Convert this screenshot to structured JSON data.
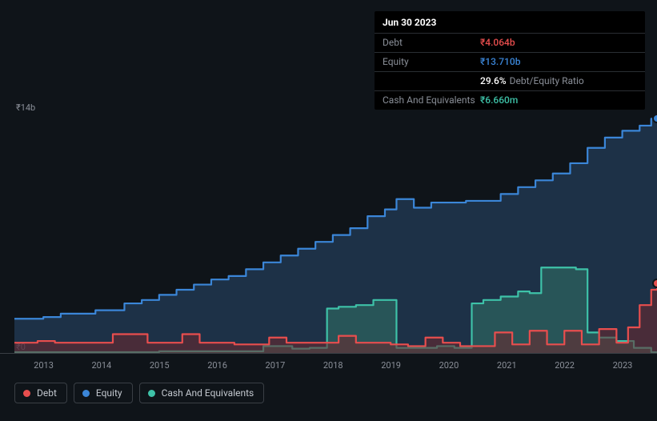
{
  "tooltip": {
    "date": "Jun 30 2023",
    "rows": [
      {
        "label": "Debt",
        "value": "₹4.064b",
        "color": "#e84e4e"
      },
      {
        "label": "Equity",
        "value": "₹13.710b",
        "color": "#3b86d8"
      },
      {
        "label": "",
        "value": "29.6%",
        "suffix": "Debt/Equity Ratio",
        "color": "#ffffff"
      },
      {
        "label": "Cash And Equivalents",
        "value": "₹6.660m",
        "color": "#3ec2a8"
      }
    ]
  },
  "chart": {
    "type": "area",
    "background_color": "#0f1419",
    "grid_color": "#3a3f45",
    "label_color": "#8a8f98",
    "ylim": [
      0,
      14
    ],
    "y_ticks": [
      {
        "label": "₹14b",
        "value": 14
      },
      {
        "label": "₹0",
        "value": 0
      }
    ],
    "x_ticks": [
      "2013",
      "2014",
      "2015",
      "2016",
      "2017",
      "2018",
      "2019",
      "2020",
      "2021",
      "2022",
      "2023"
    ],
    "x_domain": [
      2012.5,
      2023.6
    ],
    "series": {
      "equity": {
        "label": "Equity",
        "color": "#3b86d8",
        "fill": "rgba(42,73,110,0.55)",
        "line_width": 2.2,
        "data": [
          [
            2012.5,
            2.0
          ],
          [
            2012.8,
            2.0
          ],
          [
            2013.0,
            2.1
          ],
          [
            2013.3,
            2.3
          ],
          [
            2013.6,
            2.3
          ],
          [
            2013.9,
            2.5
          ],
          [
            2014.1,
            2.5
          ],
          [
            2014.4,
            2.9
          ],
          [
            2014.7,
            3.1
          ],
          [
            2015.0,
            3.4
          ],
          [
            2015.3,
            3.7
          ],
          [
            2015.6,
            4.0
          ],
          [
            2015.9,
            4.3
          ],
          [
            2016.2,
            4.5
          ],
          [
            2016.5,
            4.9
          ],
          [
            2016.8,
            5.3
          ],
          [
            2017.1,
            5.7
          ],
          [
            2017.4,
            6.1
          ],
          [
            2017.7,
            6.5
          ],
          [
            2018.0,
            6.9
          ],
          [
            2018.3,
            7.3
          ],
          [
            2018.6,
            8.0
          ],
          [
            2018.9,
            8.4
          ],
          [
            2019.1,
            9.0
          ],
          [
            2019.4,
            8.5
          ],
          [
            2019.7,
            8.8
          ],
          [
            2020.0,
            8.8
          ],
          [
            2020.3,
            8.9
          ],
          [
            2020.6,
            8.9
          ],
          [
            2020.9,
            9.3
          ],
          [
            2021.2,
            9.7
          ],
          [
            2021.5,
            10.1
          ],
          [
            2021.8,
            10.5
          ],
          [
            2022.1,
            11.1
          ],
          [
            2022.4,
            12.0
          ],
          [
            2022.7,
            12.6
          ],
          [
            2023.0,
            13.0
          ],
          [
            2023.3,
            13.3
          ],
          [
            2023.5,
            13.7
          ],
          [
            2023.6,
            13.7
          ]
        ]
      },
      "cash": {
        "label": "Cash And Equivalents",
        "color": "#3ec2a8",
        "fill": "rgba(48,110,100,0.6)",
        "line_width": 2.2,
        "data": [
          [
            2012.5,
            0.05
          ],
          [
            2014.0,
            0.05
          ],
          [
            2015.0,
            0.1
          ],
          [
            2016.0,
            0.1
          ],
          [
            2016.5,
            0.1
          ],
          [
            2016.8,
            0.4
          ],
          [
            2017.0,
            0.4
          ],
          [
            2017.3,
            0.25
          ],
          [
            2017.6,
            0.3
          ],
          [
            2017.9,
            2.6
          ],
          [
            2018.1,
            2.7
          ],
          [
            2018.4,
            2.8
          ],
          [
            2018.7,
            3.1
          ],
          [
            2018.9,
            3.1
          ],
          [
            2019.1,
            0.3
          ],
          [
            2019.8,
            0.4
          ],
          [
            2020.1,
            0.3
          ],
          [
            2020.4,
            2.9
          ],
          [
            2020.6,
            3.1
          ],
          [
            2020.9,
            3.3
          ],
          [
            2021.2,
            3.6
          ],
          [
            2021.4,
            3.5
          ],
          [
            2021.6,
            5.0
          ],
          [
            2021.9,
            5.0
          ],
          [
            2022.2,
            4.9
          ],
          [
            2022.4,
            1.2
          ],
          [
            2022.6,
            0.9
          ],
          [
            2022.9,
            0.7
          ],
          [
            2023.2,
            0.3
          ],
          [
            2023.5,
            0.05
          ],
          [
            2023.6,
            0.0066
          ]
        ]
      },
      "debt": {
        "label": "Debt",
        "color": "#e84e4e",
        "fill": "rgba(110,40,45,0.55)",
        "line_width": 2.2,
        "data": [
          [
            2012.5,
            0.6
          ],
          [
            2012.9,
            0.7
          ],
          [
            2013.2,
            0.6
          ],
          [
            2013.6,
            0.6
          ],
          [
            2013.9,
            0.6
          ],
          [
            2014.2,
            1.1
          ],
          [
            2014.5,
            1.1
          ],
          [
            2014.8,
            0.6
          ],
          [
            2015.1,
            0.6
          ],
          [
            2015.4,
            1.1
          ],
          [
            2015.7,
            0.6
          ],
          [
            2016.0,
            0.6
          ],
          [
            2016.3,
            0.5
          ],
          [
            2016.6,
            0.5
          ],
          [
            2016.9,
            0.9
          ],
          [
            2017.2,
            0.6
          ],
          [
            2017.5,
            0.6
          ],
          [
            2017.8,
            0.6
          ],
          [
            2018.1,
            1.0
          ],
          [
            2018.4,
            0.6
          ],
          [
            2018.7,
            0.6
          ],
          [
            2019.0,
            0.5
          ],
          [
            2019.3,
            0.4
          ],
          [
            2019.6,
            0.9
          ],
          [
            2019.9,
            0.6
          ],
          [
            2020.2,
            0.4
          ],
          [
            2020.5,
            0.4
          ],
          [
            2020.8,
            1.2
          ],
          [
            2021.1,
            0.5
          ],
          [
            2021.4,
            1.3
          ],
          [
            2021.7,
            0.5
          ],
          [
            2022.0,
            1.3
          ],
          [
            2022.3,
            0.5
          ],
          [
            2022.6,
            1.4
          ],
          [
            2022.9,
            0.6
          ],
          [
            2023.1,
            1.5
          ],
          [
            2023.3,
            2.8
          ],
          [
            2023.5,
            3.7
          ],
          [
            2023.6,
            4.06
          ]
        ]
      }
    },
    "legend": [
      {
        "label": "Debt",
        "color": "#e84e4e"
      },
      {
        "label": "Equity",
        "color": "#3b86d8"
      },
      {
        "label": "Cash And Equivalents",
        "color": "#3ec2a8"
      }
    ]
  }
}
